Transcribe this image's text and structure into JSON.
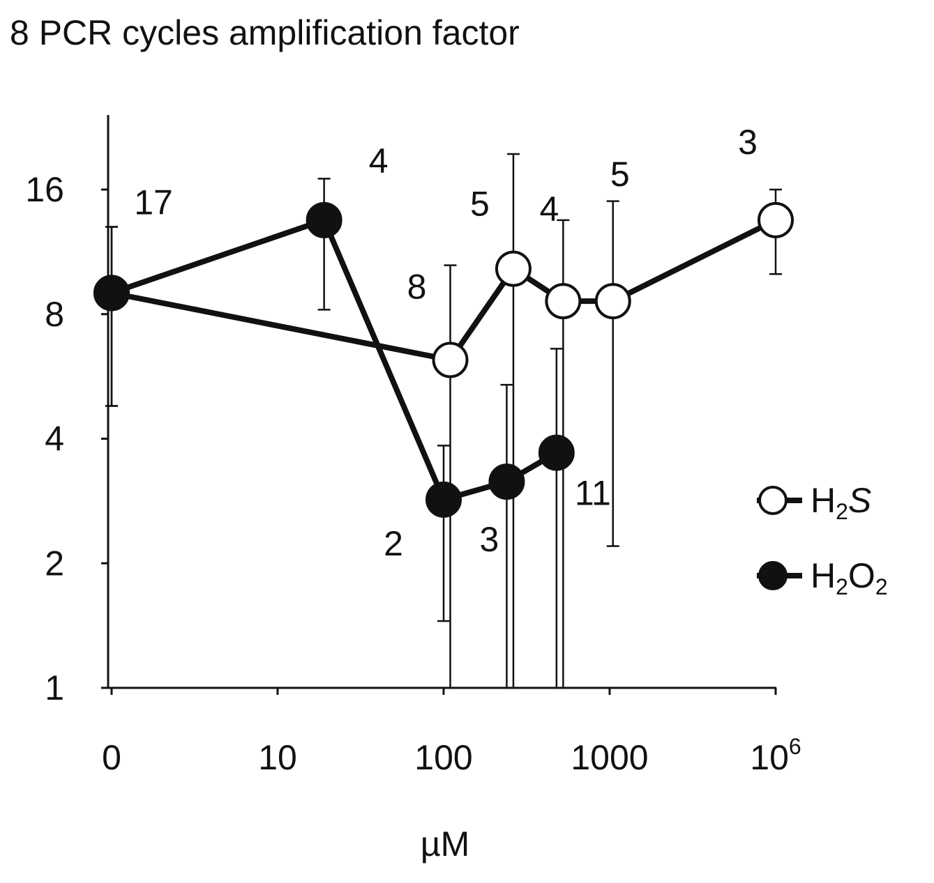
{
  "chart_data": {
    "type": "line",
    "title": "8 PCR cycles amplification factor",
    "xlabel": "µM",
    "ylabel": "",
    "y_scale": "log2",
    "ylim": [
      1,
      22
    ],
    "categories": [
      "0",
      "10",
      "100",
      "1000",
      "10^6"
    ],
    "x_tick_labels": [
      {
        "base": "0",
        "sup": ""
      },
      {
        "base": "10",
        "sup": ""
      },
      {
        "base": "100",
        "sup": ""
      },
      {
        "base": "1000",
        "sup": ""
      },
      {
        "base": "10",
        "sup": "6"
      }
    ],
    "y_ticks": [
      1,
      2,
      4,
      8,
      16
    ],
    "y_tick_labels": [
      "1",
      "2",
      "4",
      "8",
      "16"
    ],
    "x_axis_note": "categorical log-like axis; positions given as tick index (0=0, 1=10, 2=100, 3=1000, 4=10^6)",
    "series": [
      {
        "name": "H2S",
        "legend_label": {
          "parts": [
            {
              "t": "H"
            },
            {
              "t": "2",
              "sub": true
            },
            {
              "t": "S",
              "italic": true
            }
          ]
        },
        "marker": "open-circle",
        "points": [
          {
            "x": 0.0,
            "y": 9.0,
            "err_low": 4.8,
            "err_high": 13.0,
            "n": "17"
          },
          {
            "x": 2.04,
            "y": 6.2,
            "err_low": 1.0,
            "err_high": 10.5,
            "n": "8"
          },
          {
            "x": 2.42,
            "y": 10.3,
            "err_low": 1.0,
            "err_high": 19.5,
            "n": "5"
          },
          {
            "x": 2.72,
            "y": 8.6,
            "err_low": 1.0,
            "err_high": 13.5,
            "n": "4"
          },
          {
            "x": 3.02,
            "y": 8.6,
            "err_low": 2.2,
            "err_high": 15.0,
            "n": "5"
          },
          {
            "x": 4.0,
            "y": 13.5,
            "err_low": 10.0,
            "err_high": 16.0,
            "n": "3"
          }
        ]
      },
      {
        "name": "H2O2",
        "legend_label": {
          "parts": [
            {
              "t": "H"
            },
            {
              "t": "2",
              "sub": true
            },
            {
              "t": "O"
            },
            {
              "t": "2",
              "sub": true
            }
          ]
        },
        "marker": "filled-circle",
        "points": [
          {
            "x": 0.0,
            "y": 9.0,
            "err_low": 4.8,
            "err_high": 13.0,
            "n": ""
          },
          {
            "x": 1.28,
            "y": 13.5,
            "err_low": 8.2,
            "err_high": 17.0,
            "n": "4"
          },
          {
            "x": 2.0,
            "y": 2.85,
            "err_low": 1.45,
            "err_high": 3.85,
            "n": "2"
          },
          {
            "x": 2.38,
            "y": 3.15,
            "err_low": 1.0,
            "err_high": 5.4,
            "n": "3"
          },
          {
            "x": 2.68,
            "y": 3.7,
            "err_low": 1.0,
            "err_high": 6.6,
            "n": "11"
          }
        ]
      }
    ],
    "legend_position": "right",
    "grid": false
  }
}
